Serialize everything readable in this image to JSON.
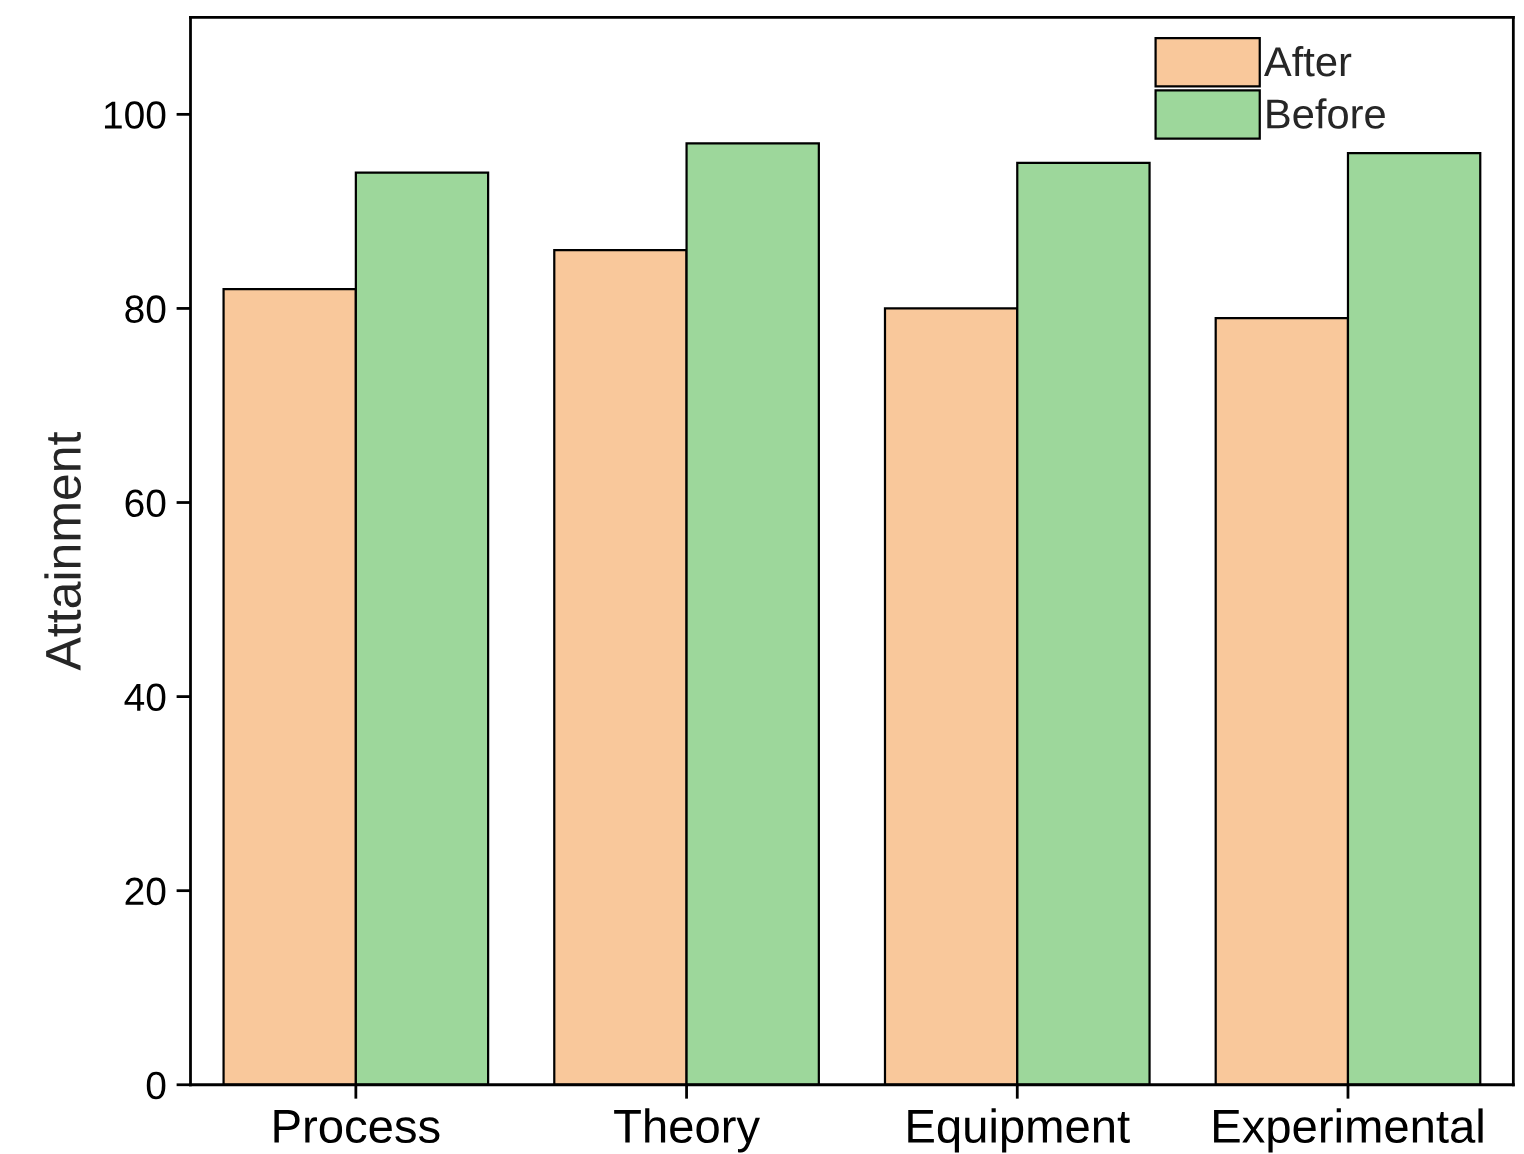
{
  "chart_data": {
    "type": "bar",
    "ylabel": "Attainment",
    "categories": [
      "Process",
      "Theory",
      "Equipment",
      "Experimental"
    ],
    "series": [
      {
        "name": "After",
        "color": "#f9c89b",
        "values": [
          82,
          86,
          80,
          79
        ]
      },
      {
        "name": "Before",
        "color": "#9dd79b",
        "values": [
          94,
          97,
          95,
          96
        ]
      }
    ],
    "ylim": [
      0,
      110
    ],
    "yticks": [
      0,
      20,
      40,
      60,
      80,
      100
    ],
    "grid": false,
    "legend": "top right"
  }
}
